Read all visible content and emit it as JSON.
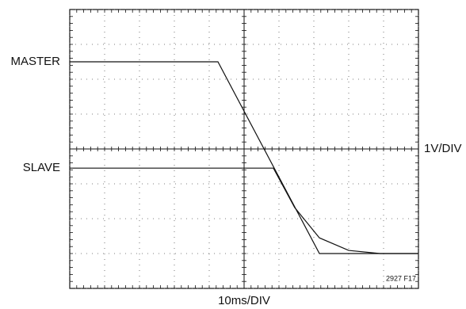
{
  "chart_data": {
    "type": "line",
    "x_label": "10ms/DIV",
    "y_label": "1V/DIV",
    "annotation": "2927 F17",
    "xlim": [
      0,
      10
    ],
    "ylim": [
      0,
      8
    ],
    "xticks": [
      0,
      1,
      2,
      3,
      4,
      5,
      6,
      7,
      8,
      9,
      10
    ],
    "yticks": [
      0,
      1,
      2,
      3,
      4,
      5,
      6,
      7,
      8
    ],
    "grid": true,
    "minor_ticks_per_div": 5,
    "series": [
      {
        "name": "MASTER",
        "color": "#111111",
        "x": [
          0,
          4.25,
          7.16,
          10
        ],
        "values": [
          6.5,
          6.5,
          1.0,
          1.0
        ]
      },
      {
        "name": "SLAVE",
        "color": "#111111",
        "x": [
          0,
          5.84,
          6.45,
          7.16,
          8.0,
          8.9,
          10
        ],
        "values": [
          3.45,
          3.45,
          2.32,
          1.45,
          1.09,
          1.0,
          1.0
        ]
      }
    ]
  }
}
